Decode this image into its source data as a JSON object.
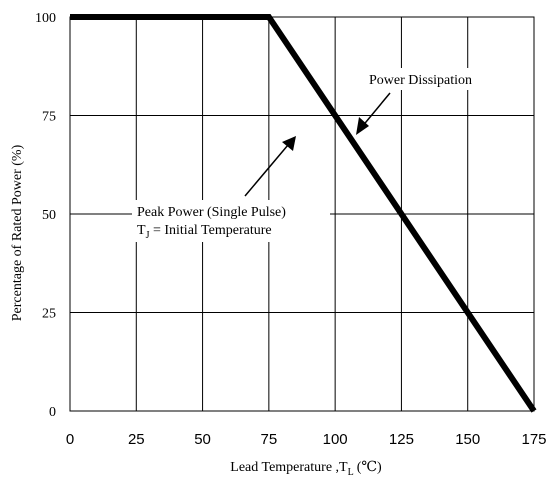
{
  "chart_data": {
    "type": "line",
    "xlabel_main": "Lead Temperature ,T",
    "xlabel_sub": "L",
    "xlabel_unit": "(℃)",
    "ylabel": "Percentage of Rated Power  (%)",
    "xlim": [
      0,
      175
    ],
    "ylim": [
      0,
      100
    ],
    "x_ticks": [
      "0",
      "25",
      "50",
      "75",
      "100",
      "125",
      "150",
      "175"
    ],
    "y_ticks": [
      "0",
      "25",
      "50",
      "75",
      "100"
    ],
    "grid": true,
    "series": [
      {
        "x": [
          0,
          75,
          175
        ],
        "y": [
          100,
          100,
          0
        ]
      }
    ],
    "annotations": {
      "power_dissipation": "Power Dissipation",
      "peak_power": "Peak Power (Single Pulse)",
      "tj_main": "T",
      "tj_sub": "J",
      "tj_rest": " = Initial Temperature"
    }
  }
}
